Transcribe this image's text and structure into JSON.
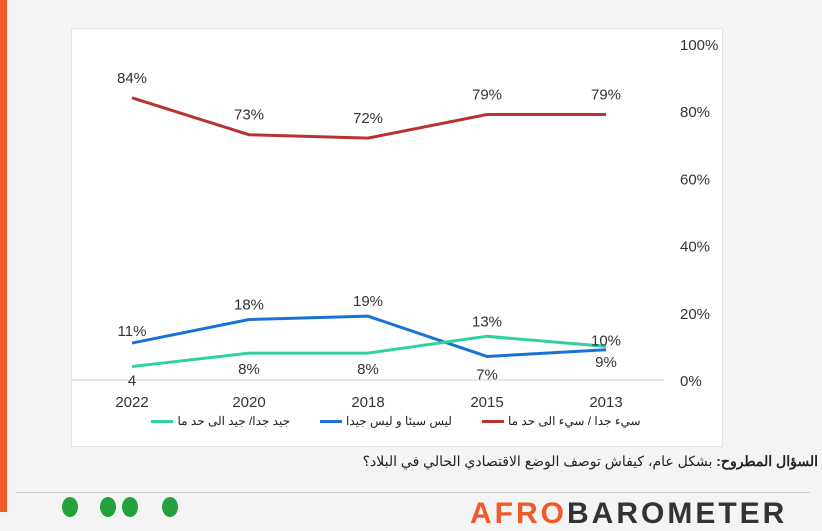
{
  "chart_data": {
    "type": "line",
    "categories": [
      "2022",
      "2020",
      "2018",
      "2015",
      "2013"
    ],
    "ylim": [
      0,
      100
    ],
    "yticks": [
      "0%",
      "20%",
      "40%",
      "60%",
      "80%",
      "100%"
    ],
    "yaxis_position": "right",
    "series": [
      {
        "name": "سيء جدا / سيء الى حد ما",
        "color": "#b83232",
        "values": [
          84,
          73,
          72,
          79,
          79
        ],
        "labels": [
          "84%",
          "73%",
          "72%",
          "79%",
          "79%"
        ]
      },
      {
        "name": "ليس سيئا و ليس جيدا",
        "color": "#1a73d4",
        "values": [
          11,
          18,
          19,
          7,
          9
        ],
        "labels": [
          "11%",
          "18%",
          "19%",
          "7%",
          "9%"
        ]
      },
      {
        "name": "جيد جدا/ جيد الى حد ما",
        "color": "#2fd19e",
        "values": [
          4,
          8,
          8,
          13,
          10
        ],
        "labels": [
          "4",
          "8%",
          "8%",
          "13%",
          "10%"
        ]
      }
    ],
    "legend": "bottom"
  },
  "question": {
    "label": "السؤال المطروح:",
    "text": "بشكل عام، كيفاش توصف الوضع الاقتصادي الحالي في البلاد؟"
  },
  "brand": {
    "a": "AFRO",
    "b": "BAROMETER"
  }
}
